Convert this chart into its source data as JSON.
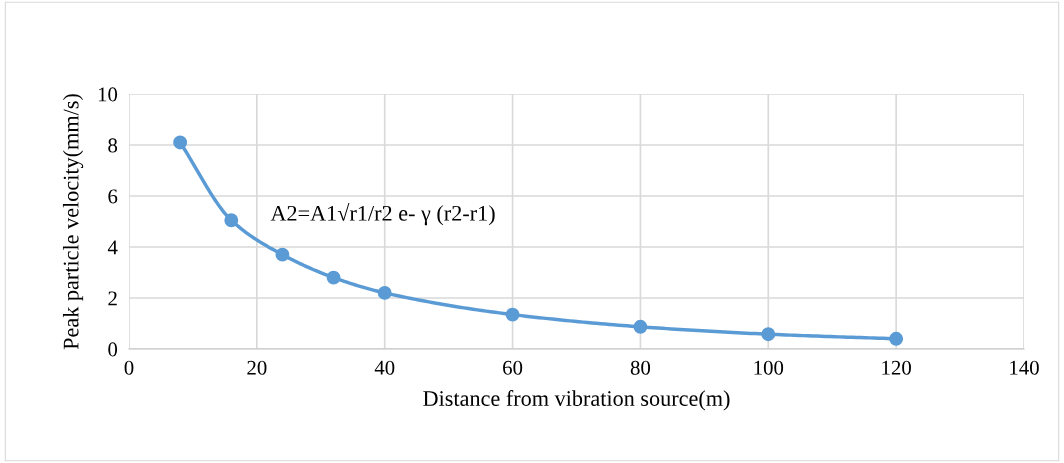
{
  "chart_data": {
    "type": "line",
    "xlabel": "Distance from vibration source(m)",
    "ylabel": "Peak particle velocity(mm/s)",
    "x": [
      8,
      16,
      24,
      32,
      40,
      60,
      80,
      100,
      120
    ],
    "series": [
      {
        "color": "#5b9bd5",
        "values": [
          8.1,
          5.05,
          3.7,
          2.8,
          2.2,
          1.35,
          0.87,
          0.58,
          0.4
        ]
      }
    ],
    "xlim": [
      0,
      140
    ],
    "xticks": [
      0,
      20,
      40,
      60,
      80,
      100,
      120,
      140
    ],
    "ylim": [
      0,
      10
    ],
    "yticks": [
      0,
      2,
      4,
      6,
      8,
      10
    ],
    "grid": true,
    "marker": "circle",
    "line_style": "solid",
    "annotations": [
      "A2=A1√r1/r2 e- γ (r2-r1)"
    ]
  }
}
